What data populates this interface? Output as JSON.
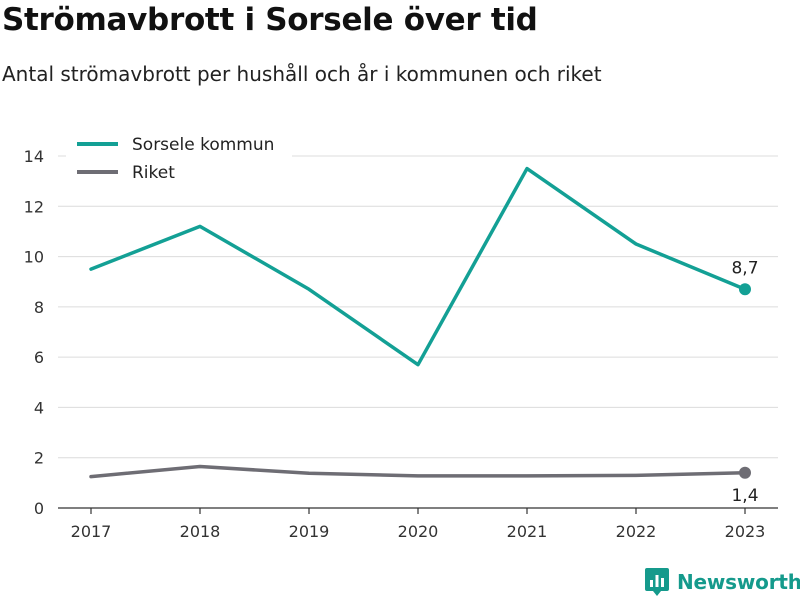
{
  "chart_data": {
    "type": "line",
    "title": "Strömavbrott i Sorsele över tid",
    "subtitle": "Antal strömavbrott per hushåll och år i kommunen och riket",
    "x": [
      "2017",
      "2018",
      "2019",
      "2020",
      "2021",
      "2022",
      "2023"
    ],
    "ylim": [
      0,
      14
    ],
    "yticks": [
      "0",
      "2",
      "4",
      "6",
      "8",
      "10",
      "12",
      "14"
    ],
    "grid": true,
    "legend_position": "top-left",
    "series": [
      {
        "name": "Sorsele kommun",
        "color": "#13a095",
        "values": [
          9.5,
          11.2,
          8.7,
          5.7,
          13.5,
          10.5,
          8.7
        ],
        "end_label": "8,7"
      },
      {
        "name": "Riket",
        "color": "#6e6d74",
        "values": [
          1.25,
          1.65,
          1.38,
          1.28,
          1.28,
          1.3,
          1.4
        ],
        "end_label": "1,4"
      }
    ]
  },
  "branding": {
    "name": "Newsworthy",
    "color": "#159a8c"
  }
}
